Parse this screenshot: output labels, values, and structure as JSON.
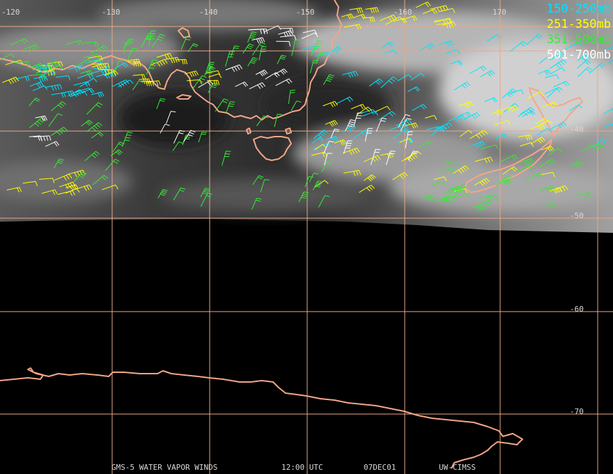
{
  "map": {
    "longitude_labels": [
      "-120",
      "-130",
      "-140",
      "-150",
      "-160",
      "170"
    ],
    "latitude_labels": [
      "-40",
      "-50",
      "-60",
      "-70"
    ],
    "legend": [
      {
        "label": "150-250mb",
        "color": "#00e5ff"
      },
      {
        "label": "251-350mb",
        "color": "#ffff00"
      },
      {
        "label": "351-500mb",
        "color": "#33ee33"
      },
      {
        "label": "501-700mb",
        "color": "#ffffff"
      }
    ],
    "footer": {
      "satellite": "GMS-5 WATER VAPOR WINDS",
      "time": "12:00 UTC",
      "date": "07DEC01",
      "source": "UW-CIMSS"
    },
    "colors": {
      "background": "#000000",
      "grid": "#e8a888",
      "coastline": "#f4a688",
      "label": "#d8d8d8"
    }
  }
}
